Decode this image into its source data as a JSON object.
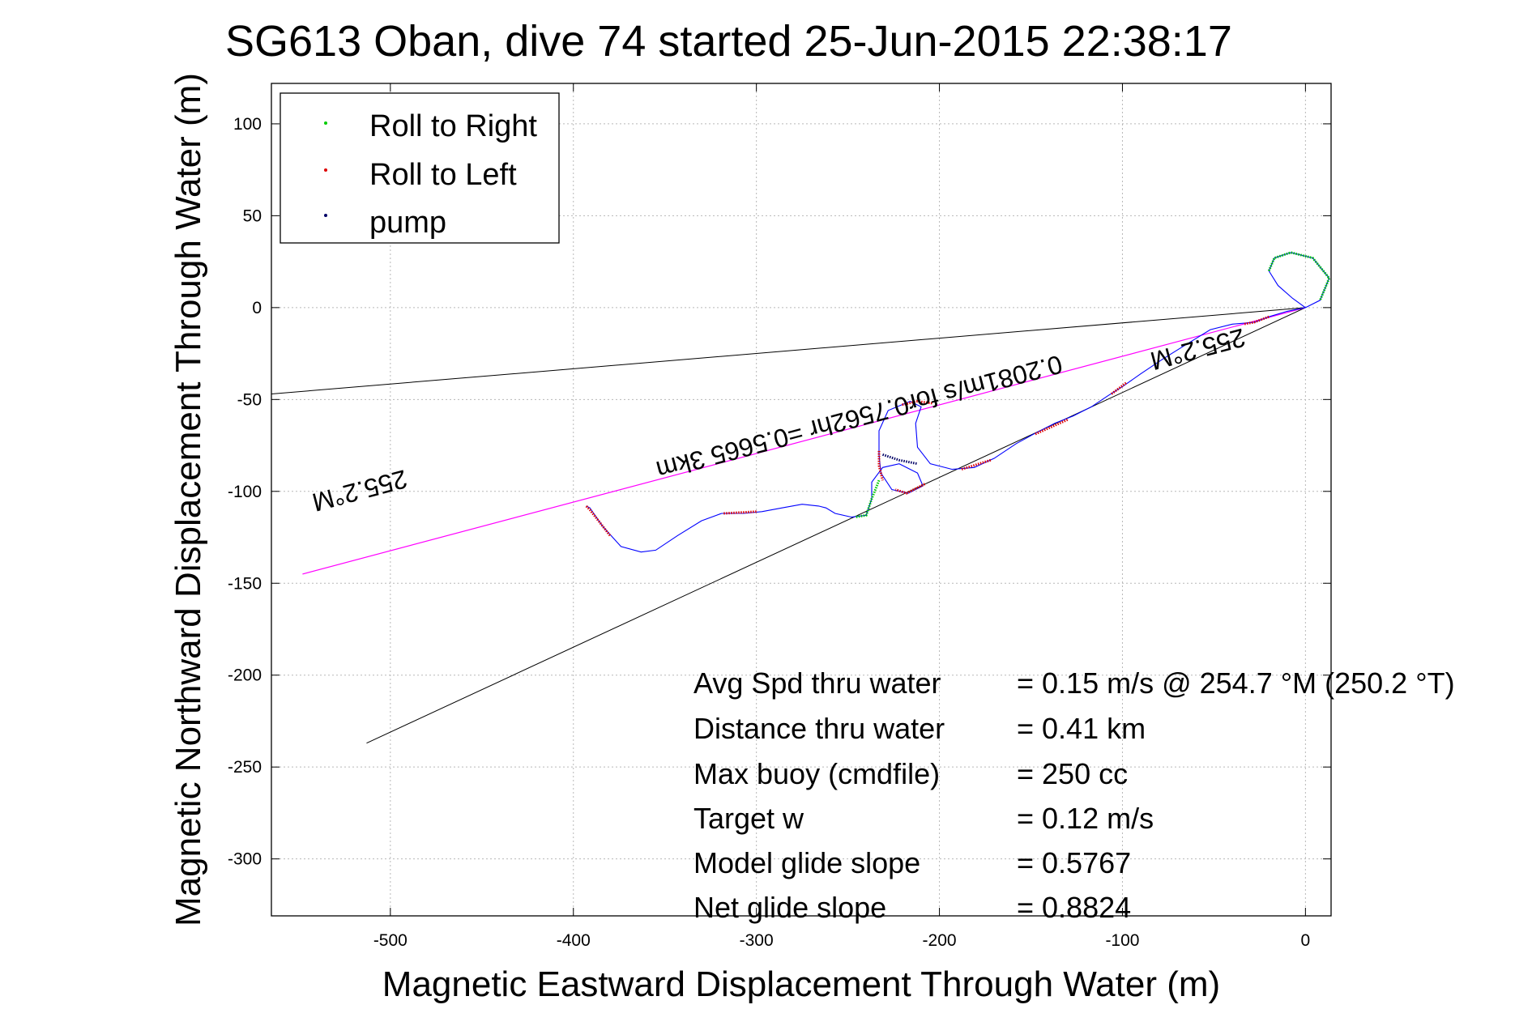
{
  "chart_data": {
    "type": "line",
    "title": "SG613 Oban, dive 74 started 25-Jun-2015 22:38:17",
    "xlabel": "Magnetic Eastward Displacement Through Water (m)",
    "ylabel": "Magnetic Northward Displacement Through Water (m)",
    "xlim": [
      -565,
      14
    ],
    "ylim": [
      -331,
      122
    ],
    "xticks": [
      -500,
      -400,
      -300,
      -200,
      -100,
      0
    ],
    "yticks": [
      100,
      50,
      0,
      -50,
      -100,
      -150,
      -200,
      -250,
      -300
    ],
    "xtick_labels": [
      "-500",
      "-400",
      "-300",
      "-200",
      "-100",
      "0"
    ],
    "ytick_labels": [
      "100",
      "50",
      "0",
      "-50",
      "-100",
      "-150",
      "-200",
      "-250",
      "-300"
    ],
    "grid": true,
    "legend_position": "top-left",
    "legend": [
      {
        "label": "Roll to Right",
        "color": "#00cc00"
      },
      {
        "label": "Roll to Left",
        "color": "#dd0000"
      },
      {
        "label": "pump",
        "color": "#000066"
      }
    ],
    "track": {
      "color": "#0000ff",
      "points": [
        [
          0,
          0
        ],
        [
          -7,
          5
        ],
        [
          -15,
          12
        ],
        [
          -20,
          20
        ],
        [
          -17,
          27
        ],
        [
          -8,
          30
        ],
        [
          4,
          27
        ],
        [
          13,
          16
        ],
        [
          8,
          4
        ],
        [
          0,
          0
        ],
        [
          -10,
          -2
        ],
        [
          -20,
          -5
        ],
        [
          -28,
          -8
        ],
        [
          -40,
          -9
        ],
        [
          -52,
          -12
        ],
        [
          -65,
          -20
        ],
        [
          -78,
          -28
        ],
        [
          -90,
          -36
        ],
        [
          -100,
          -43
        ],
        [
          -108,
          -48
        ],
        [
          -117,
          -54
        ],
        [
          -127,
          -59
        ],
        [
          -137,
          -63
        ],
        [
          -147,
          -68
        ],
        [
          -158,
          -74
        ],
        [
          -170,
          -82
        ],
        [
          -181,
          -87
        ],
        [
          -193,
          -88
        ],
        [
          -205,
          -85
        ],
        [
          -212,
          -76
        ],
        [
          -213,
          -63
        ],
        [
          -210,
          -54
        ],
        [
          -216,
          -51
        ],
        [
          -228,
          -56
        ],
        [
          -233,
          -67
        ],
        [
          -233,
          -80
        ],
        [
          -232,
          -90
        ],
        [
          -226,
          -99
        ],
        [
          -217,
          -101
        ],
        [
          -209,
          -97
        ],
        [
          -212,
          -90
        ],
        [
          -222,
          -85
        ],
        [
          -231,
          -87
        ],
        [
          -237,
          -95
        ],
        [
          -237,
          -104
        ],
        [
          -240,
          -113
        ],
        [
          -248,
          -114
        ],
        [
          -257,
          -112
        ],
        [
          -262,
          -109
        ],
        [
          -266,
          -108
        ],
        [
          -275,
          -107
        ],
        [
          -286,
          -109
        ],
        [
          -297,
          -111
        ],
        [
          -307,
          -112
        ],
        [
          -319,
          -112
        ],
        [
          -330,
          -116
        ],
        [
          -343,
          -124
        ],
        [
          -355,
          -132
        ],
        [
          -363,
          -133
        ],
        [
          -374,
          -130
        ],
        [
          -384,
          -119
        ],
        [
          -391,
          -109
        ],
        [
          -393,
          -108
        ]
      ]
    },
    "roll_right_segments": [
      [
        [
          -20,
          20
        ],
        [
          -17,
          27
        ],
        [
          -8,
          30
        ],
        [
          4,
          27
        ],
        [
          13,
          16
        ],
        [
          8,
          4
        ]
      ],
      [
        [
          -233,
          -94
        ],
        [
          -237,
          -104
        ],
        [
          -240,
          -113
        ],
        [
          -246,
          -114
        ]
      ]
    ],
    "roll_left_segments": [
      [
        [
          -20,
          -5
        ],
        [
          -28,
          -8
        ],
        [
          -34,
          -9
        ]
      ],
      [
        [
          -98,
          -41
        ],
        [
          -106,
          -47
        ]
      ],
      [
        [
          -130,
          -61
        ],
        [
          -148,
          -69
        ]
      ],
      [
        [
          -172,
          -83
        ],
        [
          -188,
          -88
        ]
      ],
      [
        [
          -204,
          -52
        ],
        [
          -212,
          -51
        ],
        [
          -221,
          -53
        ]
      ],
      [
        [
          -233,
          -78
        ],
        [
          -233,
          -86
        ],
        [
          -231,
          -94
        ]
      ],
      [
        [
          -208,
          -96
        ],
        [
          -218,
          -101
        ],
        [
          -224,
          -99
        ]
      ],
      [
        [
          -300,
          -111
        ],
        [
          -318,
          -112
        ]
      ],
      [
        [
          -380,
          -124
        ],
        [
          -391,
          -110
        ],
        [
          -393,
          -108
        ]
      ]
    ],
    "pump_segments": [
      [
        [
          -231,
          -80
        ],
        [
          -222,
          -83
        ],
        [
          -212,
          -85
        ]
      ]
    ],
    "heading_line": {
      "color": "#ff00ff",
      "start": [
        0,
        0
      ],
      "end": [
        -548,
        -145
      ]
    },
    "bearing_lines": [
      {
        "color": "#000000",
        "start": [
          0,
          0
        ],
        "end": [
          -565,
          -47
        ]
      },
      {
        "color": "#000000",
        "start": [
          0,
          0
        ],
        "end": [
          -513,
          -237
        ]
      }
    ],
    "annotations": [
      {
        "text": "255.2°M",
        "x": -60,
        "y": -18
      },
      {
        "text": "0.2081m/s for0.7562hr =0.5665 3km",
        "x": -245,
        "y": -55
      },
      {
        "text": "255.2°M",
        "x": -518,
        "y": -95
      }
    ],
    "stats": [
      {
        "label": "Avg Spd thru water",
        "value": "=  0.15 m/s @ 254.7 °M (250.2 °T)"
      },
      {
        "label": "Distance thru water",
        "value": "=  0.41 km"
      },
      {
        "label": "Max buoy (cmdfile)",
        "value": "= 250 cc"
      },
      {
        "label": "Target w",
        "value": "= 0.12 m/s"
      },
      {
        "label": "Model glide slope",
        "value": "= 0.5767"
      },
      {
        "label": "Net glide slope",
        "value": "= 0.8824"
      }
    ]
  }
}
